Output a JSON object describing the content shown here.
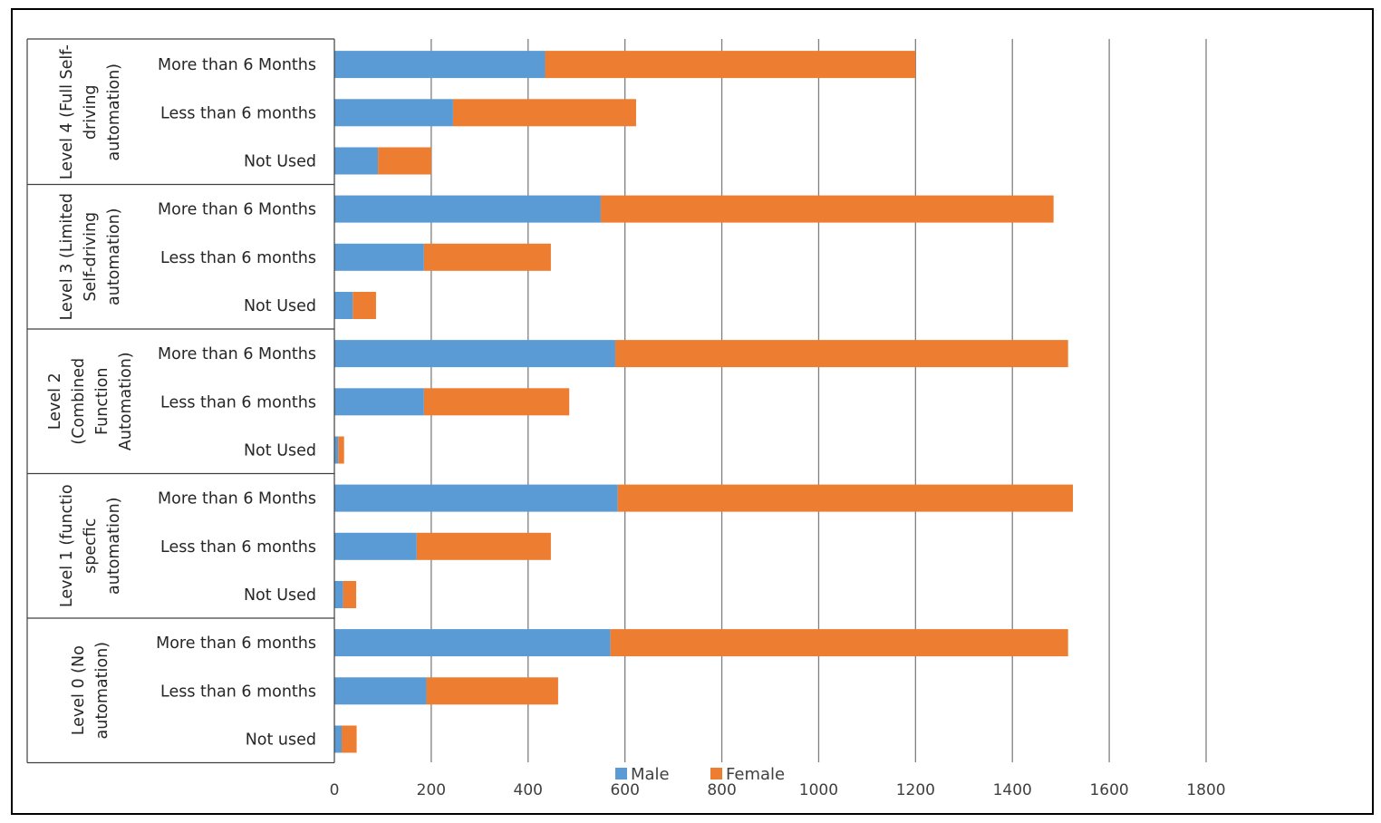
{
  "chart_data": {
    "type": "bar",
    "orientation": "horizontal",
    "stacked": true,
    "groups": [
      {
        "label_lines": [
          "Level 4 (Full Self-",
          "driving",
          "automation)"
        ],
        "categories": [
          "More than 6 Months",
          "Less than 6 months",
          "Not Used"
        ]
      },
      {
        "label_lines": [
          "Level 3 (Limited",
          "Self-driving",
          "automation)"
        ],
        "categories": [
          "More than 6 Months",
          "Less than 6 months",
          "Not Used"
        ]
      },
      {
        "label_lines": [
          "Level 2",
          "(Combined",
          "Function",
          "Automation)"
        ],
        "categories": [
          "More than 6 Months",
          "Less than 6 months",
          "Not Used"
        ]
      },
      {
        "label_lines": [
          "Level 1 (functio",
          "specfic",
          "automation)"
        ],
        "categories": [
          "More than 6 Months",
          "Less than 6 months",
          "Not Used"
        ]
      },
      {
        "label_lines": [
          "Level 0 (No",
          "automation)"
        ],
        "categories": [
          "More than 6 months",
          "Less than 6 months",
          "Not used"
        ]
      }
    ],
    "series": [
      {
        "name": "Male",
        "color": "#5b9bd5",
        "values": [
          435,
          245,
          90,
          550,
          185,
          38,
          580,
          185,
          8,
          585,
          170,
          18,
          570,
          190,
          15
        ]
      },
      {
        "name": "Female",
        "color": "#ed7d31",
        "values": [
          765,
          378,
          110,
          935,
          262,
          48,
          935,
          300,
          12,
          940,
          277,
          27,
          945,
          272,
          31
        ]
      }
    ],
    "xlim": [
      0,
      1800
    ],
    "xticks": [
      0,
      200,
      400,
      600,
      800,
      1000,
      1200,
      1400,
      1600,
      1800
    ],
    "grid": true,
    "legend_position": "bottom"
  }
}
